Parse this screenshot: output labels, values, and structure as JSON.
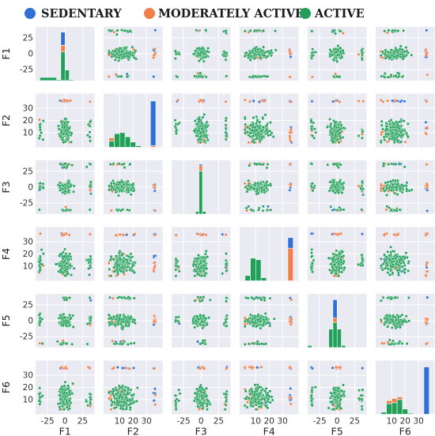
{
  "chart_data": {
    "type": "scatter",
    "kind": "pairplot",
    "variables": [
      "F1",
      "F2",
      "F3",
      "F4",
      "F5",
      "F6"
    ],
    "legend": {
      "placement": "top",
      "items": [
        {
          "name": "SEDENTARY",
          "color": "#2f6fd6"
        },
        {
          "name": "MODERATELY ACTIVE",
          "color": "#f07f4a"
        },
        {
          "name": "ACTIVE",
          "color": "#22a05a"
        }
      ]
    },
    "grid": true,
    "panel_background": "#e9eaf2",
    "axes": {
      "F1": {
        "range": [
          -42,
          42
        ],
        "ticks": [
          -25,
          0,
          25
        ],
        "yticks": [
          -25,
          0,
          25
        ]
      },
      "F2": {
        "range": [
          -2,
          42
        ],
        "ticks": [
          10,
          20,
          30
        ],
        "yticks": [
          10,
          20,
          30
        ]
      },
      "F3": {
        "range": [
          -42,
          42
        ],
        "ticks": [
          -25,
          0,
          25
        ],
        "yticks": [
          -25,
          0,
          25
        ]
      },
      "F4": {
        "range": [
          -2,
          42
        ],
        "ticks": [
          10,
          20,
          30
        ],
        "yticks": [
          10,
          20,
          30
        ]
      },
      "F5": {
        "range": [
          -42,
          42
        ],
        "ticks": [
          -25,
          0,
          25
        ],
        "yticks": [
          -25,
          0,
          25
        ]
      },
      "F6": {
        "range": [
          -2,
          42
        ],
        "ticks": [
          10,
          20,
          30
        ],
        "yticks": [
          10,
          20,
          30
        ]
      }
    },
    "diagonal_histograms": [
      {
        "variable": "F1",
        "bins": [
          {
            "x": [
              -36,
              -12
            ],
            "active": 0.06
          },
          {
            "x": [
              -12,
              -6
            ],
            "active": 0.02
          },
          {
            "x": [
              -6,
              0
            ],
            "active": 0.55,
            "moderately_active": 0.12,
            "sedentary": 0.25
          },
          {
            "x": [
              0,
              6
            ],
            "active": 0.2
          },
          {
            "x": [
              6,
              12
            ],
            "active": 0.02
          }
        ]
      },
      {
        "variable": "F2",
        "bins": [
          {
            "x": [
              2,
              6
            ],
            "active": 0.12,
            "moderately_active": 0.06
          },
          {
            "x": [
              6,
              10
            ],
            "active": 0.26
          },
          {
            "x": [
              10,
              14
            ],
            "active": 0.28
          },
          {
            "x": [
              14,
              18
            ],
            "active": 0.2
          },
          {
            "x": [
              18,
              22
            ],
            "active": 0.1
          },
          {
            "x": [
              22,
              26
            ],
            "active": 0.03
          },
          {
            "x": [
              33,
              37
            ],
            "moderately_active": 0.03,
            "sedentary": 0.85
          }
        ]
      },
      {
        "variable": "F3",
        "bins": [
          {
            "x": [
              -8,
              -3
            ],
            "active": 0.05
          },
          {
            "x": [
              -3,
              2
            ],
            "active": 0.82,
            "moderately_active": 0.1,
            "sedentary": 0.03
          },
          {
            "x": [
              2,
              7
            ],
            "active": 0.05
          }
        ]
      },
      {
        "variable": "F4",
        "bins": [
          {
            "x": [
              2,
              6
            ],
            "active": 0.1
          },
          {
            "x": [
              6,
              10
            ],
            "active": 0.43
          },
          {
            "x": [
              10,
              14
            ],
            "active": 0.4
          },
          {
            "x": [
              14,
              18
            ],
            "active": 0.06
          },
          {
            "x": [
              34,
              38
            ],
            "moderately_active": 0.62,
            "sedentary": 0.2
          }
        ]
      },
      {
        "variable": "F5",
        "bins": [
          {
            "x": [
              -42,
              -36
            ],
            "active": 0.04
          },
          {
            "x": [
              -12,
              -6
            ],
            "active": 0.35
          },
          {
            "x": [
              -6,
              0
            ],
            "active": 0.48,
            "moderately_active": 0.08,
            "sedentary": 0.35
          },
          {
            "x": [
              0,
              6
            ],
            "active": 0.35
          },
          {
            "x": [
              6,
              12
            ],
            "active": 0.04
          }
        ]
      },
      {
        "variable": "F6",
        "bins": [
          {
            "x": [
              2,
              6
            ],
            "active": 0.04
          },
          {
            "x": [
              6,
              10
            ],
            "active": 0.2,
            "moderately_active": 0.06
          },
          {
            "x": [
              10,
              14
            ],
            "active": 0.22,
            "moderately_active": 0.08
          },
          {
            "x": [
              14,
              18
            ],
            "active": 0.28,
            "moderately_active": 0.05
          },
          {
            "x": [
              18,
              22
            ],
            "active": 0.1
          },
          {
            "x": [
              22,
              26
            ],
            "active": 0.02
          },
          {
            "x": [
              34,
              38
            ],
            "sedentary": 0.9
          }
        ]
      }
    ]
  }
}
